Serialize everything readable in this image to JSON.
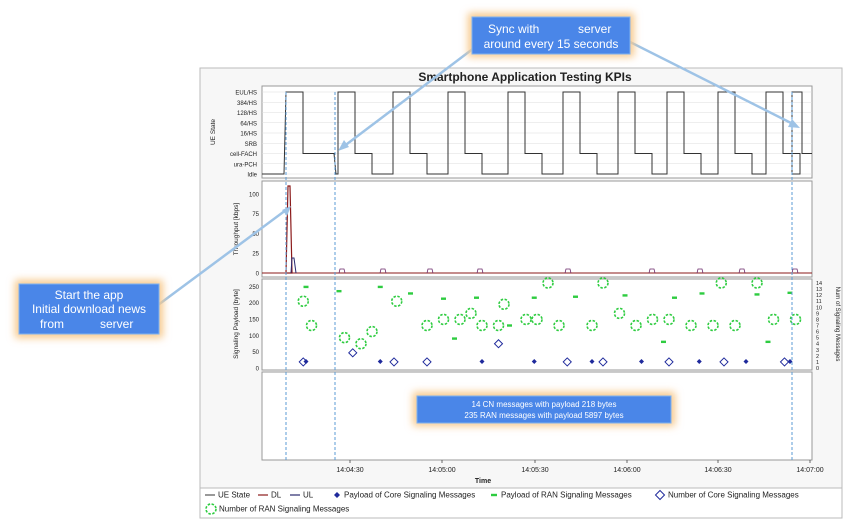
{
  "chart_data": {
    "type": "line",
    "title": "Smartphone Application Testing KPIs",
    "xlabel": "Time",
    "x_ticks": [
      "14:04:30",
      "14:05:00",
      "14:05:30",
      "14:06:00",
      "14:06:30",
      "14:07:00"
    ],
    "panels": {
      "ue_state": {
        "ylabel": "UE State",
        "levels": [
          "EUL/HS",
          "384/HS",
          "128/HS",
          "64/HS",
          "16/HS",
          "SRB",
          "cell-FACH",
          "ura-PCH",
          "Idle"
        ],
        "sync_period_s": 15
      },
      "throughput": {
        "ylabel": "Throughput [kbps]",
        "ylim": [
          0,
          110
        ],
        "y_ticks": [
          "0",
          "25",
          "50",
          "75",
          "100"
        ]
      },
      "signaling": {
        "ylabel": "Signaling Payload [byte]",
        "ylabel_right": "Num of Signaling Messages",
        "ylim": [
          0,
          260
        ],
        "y_ticks": [
          "0",
          "50",
          "100",
          "150",
          "200",
          "250"
        ],
        "y2_ticks": [
          "0",
          "1",
          "2",
          "3",
          "4",
          "5",
          "6",
          "7",
          "8",
          "9",
          "10",
          "11",
          "12",
          "13",
          "14"
        ],
        "core_payload_points": [
          [
            0.08,
            20
          ],
          [
            0.215,
            20
          ],
          [
            0.4,
            20
          ],
          [
            0.495,
            20
          ],
          [
            0.6,
            20
          ],
          [
            0.69,
            20
          ],
          [
            0.795,
            20
          ],
          [
            0.88,
            20
          ],
          [
            0.96,
            20
          ]
        ],
        "ran_payload_points": [
          [
            0.08,
            248
          ],
          [
            0.14,
            235
          ],
          [
            0.215,
            248
          ],
          [
            0.27,
            228
          ],
          [
            0.33,
            212
          ],
          [
            0.39,
            215
          ],
          [
            0.495,
            215
          ],
          [
            0.57,
            218
          ],
          [
            0.66,
            222
          ],
          [
            0.75,
            215
          ],
          [
            0.8,
            228
          ],
          [
            0.9,
            225
          ],
          [
            0.96,
            230
          ],
          [
            0.45,
            130
          ],
          [
            0.35,
            90
          ],
          [
            0.73,
            80
          ],
          [
            0.92,
            80
          ]
        ],
        "core_count_points": [
          [
            0.075,
            1
          ],
          [
            0.165,
            2.5
          ],
          [
            0.24,
            1
          ],
          [
            0.3,
            1
          ],
          [
            0.43,
            4
          ],
          [
            0.555,
            1
          ],
          [
            0.62,
            1
          ],
          [
            0.74,
            1
          ],
          [
            0.84,
            1
          ],
          [
            0.95,
            1
          ]
        ],
        "ran_count_points": [
          [
            0.075,
            11
          ],
          [
            0.2,
            6
          ],
          [
            0.245,
            11
          ],
          [
            0.44,
            10.5
          ],
          [
            0.52,
            14
          ],
          [
            0.62,
            14
          ],
          [
            0.835,
            14
          ],
          [
            0.9,
            14
          ],
          [
            0.09,
            7
          ],
          [
            0.15,
            5
          ],
          [
            0.18,
            4
          ],
          [
            0.3,
            7
          ],
          [
            0.33,
            8
          ],
          [
            0.36,
            8
          ],
          [
            0.4,
            7
          ],
          [
            0.43,
            7
          ],
          [
            0.48,
            8
          ],
          [
            0.5,
            8
          ],
          [
            0.54,
            7
          ],
          [
            0.6,
            7
          ],
          [
            0.65,
            9
          ],
          [
            0.68,
            7
          ],
          [
            0.71,
            8
          ],
          [
            0.74,
            8
          ],
          [
            0.78,
            7
          ],
          [
            0.82,
            7
          ],
          [
            0.86,
            7
          ],
          [
            0.93,
            8
          ],
          [
            0.97,
            8
          ],
          [
            0.38,
            9
          ]
        ]
      }
    },
    "legend": [
      {
        "name": "UE State",
        "color": "#555555"
      },
      {
        "name": "DL",
        "color": "#8b1a1a"
      },
      {
        "name": "UL",
        "color": "#2a2a6e"
      },
      {
        "name": "Payload of Core Signaling Messages",
        "color": "#1f2a9c"
      },
      {
        "name": "Payload of RAN Signaling Messages",
        "color": "#2ecc40"
      },
      {
        "name": "Number of Core Signaling Messages",
        "color": "#1f2a9c"
      },
      {
        "name": "Number of RAN Signaling Messages",
        "color": "#2ecc40"
      }
    ]
  },
  "annotations": {
    "sync": {
      "line1": "Sync with",
      "line1b": "server",
      "line2": "around every 15 seconds"
    },
    "start": {
      "line1": "Start the app",
      "line2": "Initial download news",
      "line3a": "from",
      "line3b": "server"
    },
    "summary": {
      "line1": "14 CN messages with payload 218 bytes",
      "line2": "235 RAN messages with payload 5897 bytes"
    }
  },
  "colors": {
    "callout_fill": "#4a86e8",
    "callout_glow": "#f7c88a",
    "arrow": "#9ec3e6"
  }
}
